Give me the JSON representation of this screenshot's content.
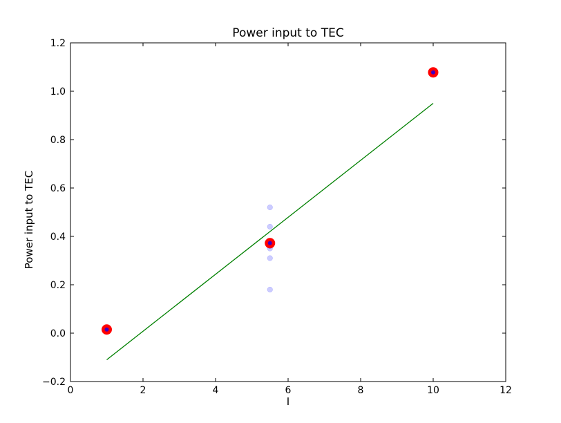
{
  "chart_data": {
    "type": "scatter",
    "title": "Power input to TEC",
    "xlabel": "I",
    "ylabel": "Power input to TEC",
    "xlim": [
      0,
      12
    ],
    "ylim": [
      -0.2,
      1.2
    ],
    "xticks": [
      0,
      2,
      4,
      6,
      8,
      10,
      12
    ],
    "yticks": [
      -0.2,
      0.0,
      0.2,
      0.4,
      0.6,
      0.8,
      1.0,
      1.2
    ],
    "xtick_labels": [
      "0",
      "2",
      "4",
      "6",
      "8",
      "10",
      "12"
    ],
    "ytick_labels": [
      "−0.2",
      "0.0",
      "0.2",
      "0.4",
      "0.6",
      "0.8",
      "1.0",
      "1.2"
    ],
    "grid": false,
    "series": [
      {
        "kind": "scatter",
        "color": "#0000ff",
        "opacity": 0.2,
        "x": [
          5.5,
          5.5,
          5.5,
          5.5,
          5.5,
          5.5,
          5.5
        ],
        "y": [
          0.52,
          0.44,
          0.38,
          0.36,
          0.35,
          0.31,
          0.18
        ]
      },
      {
        "kind": "line",
        "color": "#008000",
        "x": [
          1,
          10
        ],
        "y": [
          -0.11,
          0.95
        ]
      },
      {
        "kind": "scatter",
        "color": "#ff0000",
        "edge_color": "#0000ff",
        "x": [
          1,
          5.5,
          10
        ],
        "y": [
          0.015,
          0.372,
          1.078
        ]
      }
    ]
  }
}
